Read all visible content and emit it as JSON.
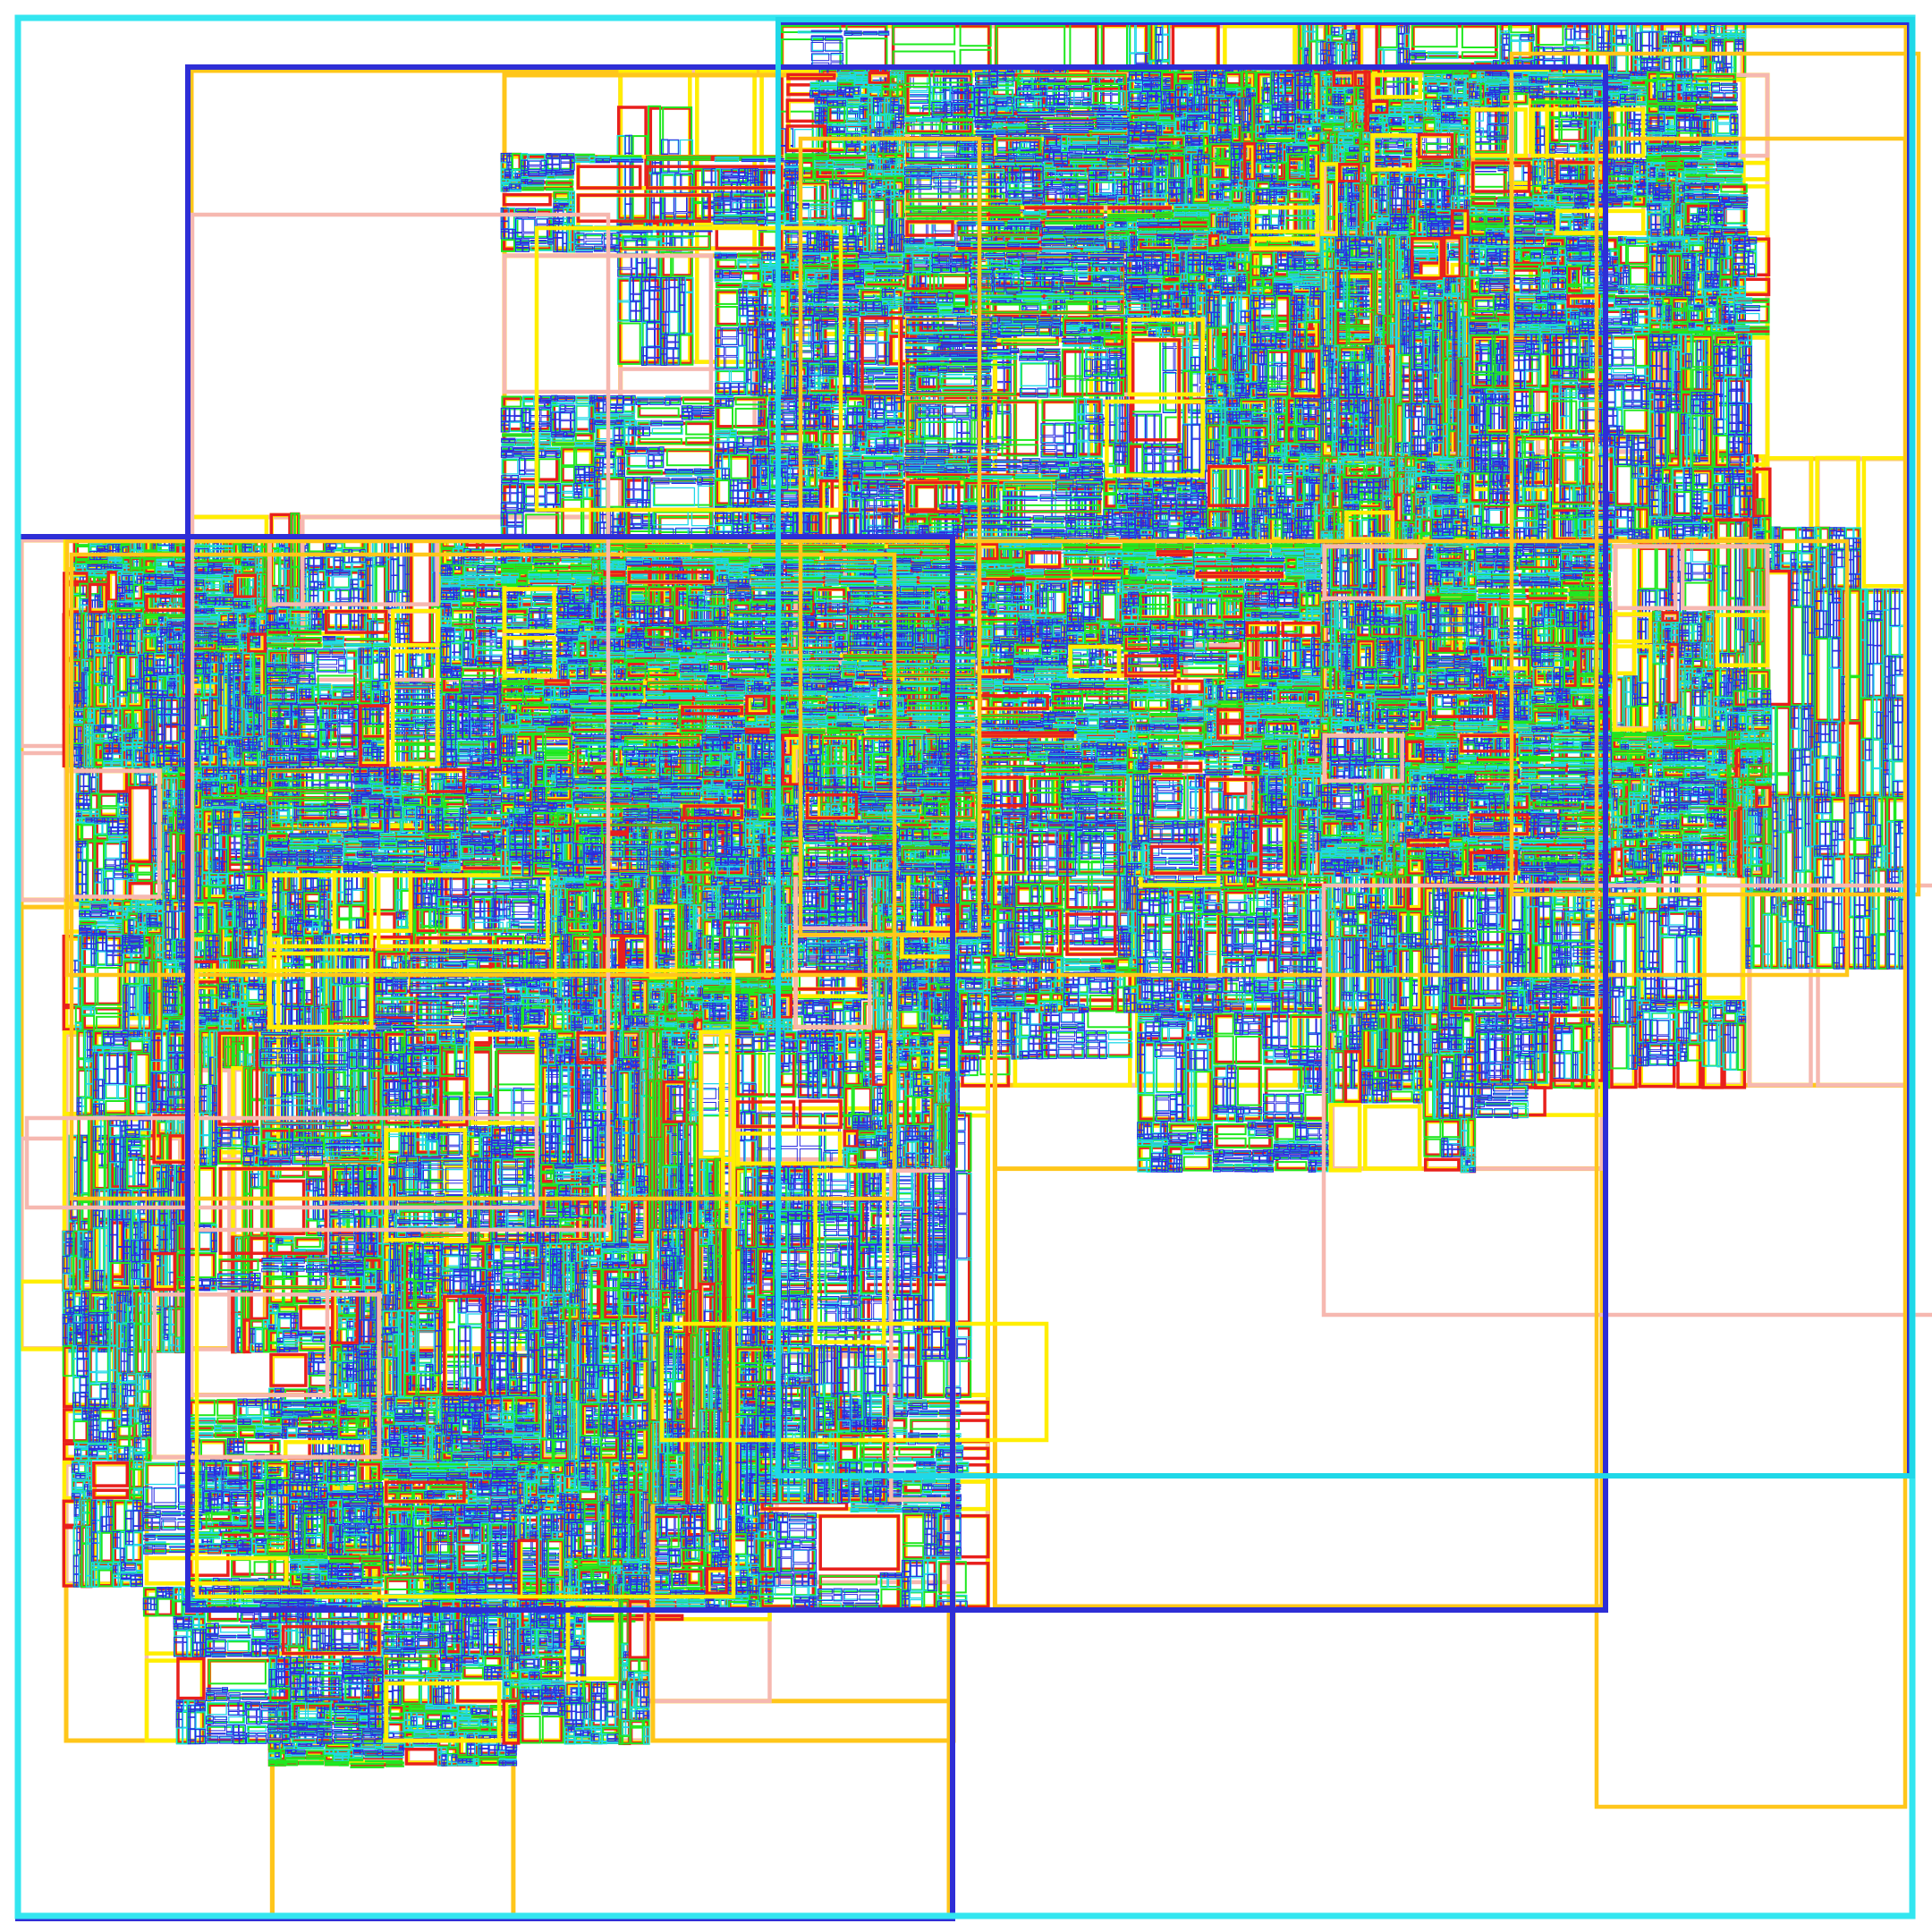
{
  "levels": [
    {
      "name": "outer-frame",
      "color": "#33e6f0"
    },
    {
      "name": "quadrant",
      "color": "#2e2ed6"
    },
    {
      "name": "orange-cell",
      "color": "#ffc61a"
    },
    {
      "name": "pink-cell",
      "color": "#f6b8b0"
    },
    {
      "name": "yellow-cell",
      "color": "#ffee00"
    },
    {
      "name": "red-cell",
      "color": "#e8201c"
    },
    {
      "name": "green-cell",
      "color": "#1fe81f"
    },
    {
      "name": "cyan-cell",
      "color": "#1fd8e8"
    },
    {
      "name": "blue-cell",
      "color": "#2a2ae0"
    }
  ],
  "background": "#ffffff"
}
